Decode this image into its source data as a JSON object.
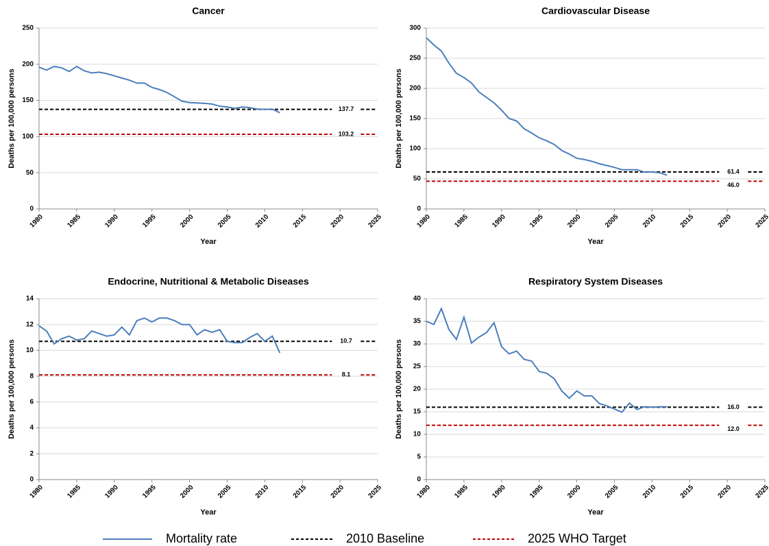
{
  "chart_data": [
    {
      "type": "line",
      "title": "Cancer",
      "xlabel": "Year",
      "ylabel": "Deaths per 100,000 persons",
      "x": [
        1980,
        1981,
        1982,
        1983,
        1984,
        1985,
        1986,
        1987,
        1988,
        1989,
        1990,
        1991,
        1992,
        1993,
        1994,
        1995,
        1996,
        1997,
        1998,
        1999,
        2000,
        2001,
        2002,
        2003,
        2004,
        2005,
        2006,
        2007,
        2008,
        2009,
        2010,
        2011,
        2012
      ],
      "series": [
        {
          "name": "Mortality rate",
          "color": "#4a7ebb",
          "values": [
            196,
            192,
            197,
            195,
            190,
            197,
            191,
            188,
            189,
            187,
            184,
            181,
            178,
            174,
            174,
            168,
            165,
            161,
            155,
            149,
            147,
            146.5,
            146,
            145,
            142,
            141,
            139,
            141,
            140,
            138,
            137.7,
            138,
            133
          ]
        }
      ],
      "reference_lines": [
        {
          "name": "2010 Baseline",
          "color": "#000000",
          "value": 137.7,
          "label": "137.7"
        },
        {
          "name": "2025 WHO Target",
          "color": "#c00000",
          "value": 103.2,
          "label": "103.2"
        }
      ],
      "xlim": [
        1980,
        2025
      ],
      "xticks": [
        1980,
        1985,
        1990,
        1995,
        2000,
        2005,
        2010,
        2015,
        2020,
        2025
      ],
      "ylim": [
        0,
        250
      ],
      "yticks": [
        0,
        50,
        100,
        150,
        200,
        250
      ],
      "grid": true
    },
    {
      "type": "line",
      "title": "Cardiovascular Disease",
      "xlabel": "Year",
      "ylabel": "Deaths per 100,000 persons",
      "x": [
        1980,
        1981,
        1982,
        1983,
        1984,
        1985,
        1986,
        1987,
        1988,
        1989,
        1990,
        1991,
        1992,
        1993,
        1994,
        1995,
        1996,
        1997,
        1998,
        1999,
        2000,
        2001,
        2002,
        2003,
        2004,
        2005,
        2006,
        2007,
        2008,
        2009,
        2010,
        2011,
        2012
      ],
      "series": [
        {
          "name": "Mortality rate",
          "color": "#4a7ebb",
          "values": [
            284,
            272,
            262,
            242,
            225,
            218,
            209,
            194,
            185,
            176,
            164,
            150,
            146,
            133,
            126,
            118,
            113,
            107,
            97,
            91,
            84,
            82,
            79,
            75,
            72,
            69,
            65,
            65,
            65,
            61,
            61.4,
            60,
            56
          ]
        }
      ],
      "reference_lines": [
        {
          "name": "2010 Baseline",
          "color": "#000000",
          "value": 61.4,
          "label": "61.4"
        },
        {
          "name": "2025 WHO Target",
          "color": "#c00000",
          "value": 46,
          "label": "46.0"
        }
      ],
      "xlim": [
        1980,
        2025
      ],
      "xticks": [
        1980,
        1985,
        1990,
        1995,
        2000,
        2005,
        2010,
        2015,
        2020,
        2025
      ],
      "ylim": [
        0,
        300
      ],
      "yticks": [
        0,
        50,
        100,
        150,
        200,
        250,
        300
      ],
      "grid": true
    },
    {
      "type": "line",
      "title": "Endocrine, Nutritional & Metabolic Diseases",
      "xlabel": "Year",
      "ylabel": "Deaths per 100,000 persons",
      "x": [
        1980,
        1981,
        1982,
        1983,
        1984,
        1985,
        1986,
        1987,
        1988,
        1989,
        1990,
        1991,
        1992,
        1993,
        1994,
        1995,
        1996,
        1997,
        1998,
        1999,
        2000,
        2001,
        2002,
        2003,
        2004,
        2005,
        2006,
        2007,
        2008,
        2009,
        2010,
        2011,
        2012
      ],
      "series": [
        {
          "name": "Mortality rate",
          "color": "#4a7ebb",
          "values": [
            11.9,
            11.5,
            10.5,
            10.9,
            11.1,
            10.8,
            10.9,
            11.5,
            11.3,
            11.1,
            11.2,
            11.8,
            11.2,
            12.3,
            12.5,
            12.2,
            12.5,
            12.5,
            12.3,
            12.0,
            12.0,
            11.2,
            11.6,
            11.4,
            11.6,
            10.7,
            10.6,
            10.6,
            11.0,
            11.3,
            10.7,
            11.1,
            9.8
          ]
        }
      ],
      "reference_lines": [
        {
          "name": "2010 Baseline",
          "color": "#000000",
          "value": 10.7,
          "label": "10.7"
        },
        {
          "name": "2025 WHO Target",
          "color": "#c00000",
          "value": 8.1,
          "label": "8.1"
        }
      ],
      "xlim": [
        1980,
        2025
      ],
      "xticks": [
        1980,
        1985,
        1990,
        1995,
        2000,
        2005,
        2010,
        2015,
        2020,
        2025
      ],
      "ylim": [
        0,
        14
      ],
      "yticks": [
        0,
        2,
        4,
        6,
        8,
        10,
        12,
        14
      ],
      "grid": true
    },
    {
      "type": "line",
      "title": "Respiratory System Diseases",
      "xlabel": "Year",
      "ylabel": "Deaths per 100,000 persons",
      "x": [
        1980,
        1981,
        1982,
        1983,
        1984,
        1985,
        1986,
        1987,
        1988,
        1989,
        1990,
        1991,
        1992,
        1993,
        1994,
        1995,
        1996,
        1997,
        1998,
        1999,
        2000,
        2001,
        2002,
        2003,
        2004,
        2005,
        2006,
        2007,
        2008,
        2009,
        2010,
        2011,
        2012
      ],
      "series": [
        {
          "name": "Mortality rate",
          "color": "#4a7ebb",
          "values": [
            35,
            34.3,
            37.8,
            33.2,
            31,
            35.9,
            30.2,
            31.5,
            32.5,
            34.7,
            29.4,
            27.8,
            28.4,
            26.6,
            26.2,
            23.9,
            23.5,
            22.3,
            19.6,
            18,
            19.6,
            18.5,
            18.5,
            16.8,
            16.3,
            15.6,
            14.9,
            16.9,
            15.5,
            16.1,
            16,
            16.1,
            16.1
          ]
        }
      ],
      "reference_lines": [
        {
          "name": "2010 Baseline",
          "color": "#000000",
          "value": 16,
          "label": "16.0"
        },
        {
          "name": "2025 WHO Target",
          "color": "#c00000",
          "value": 12,
          "label": "12.0"
        }
      ],
      "xlim": [
        1980,
        2025
      ],
      "xticks": [
        1980,
        1985,
        1990,
        1995,
        2000,
        2005,
        2010,
        2015,
        2020,
        2025
      ],
      "ylim": [
        0,
        40
      ],
      "yticks": [
        0,
        5,
        10,
        15,
        20,
        25,
        30,
        35,
        40
      ],
      "grid": true
    }
  ]
}
